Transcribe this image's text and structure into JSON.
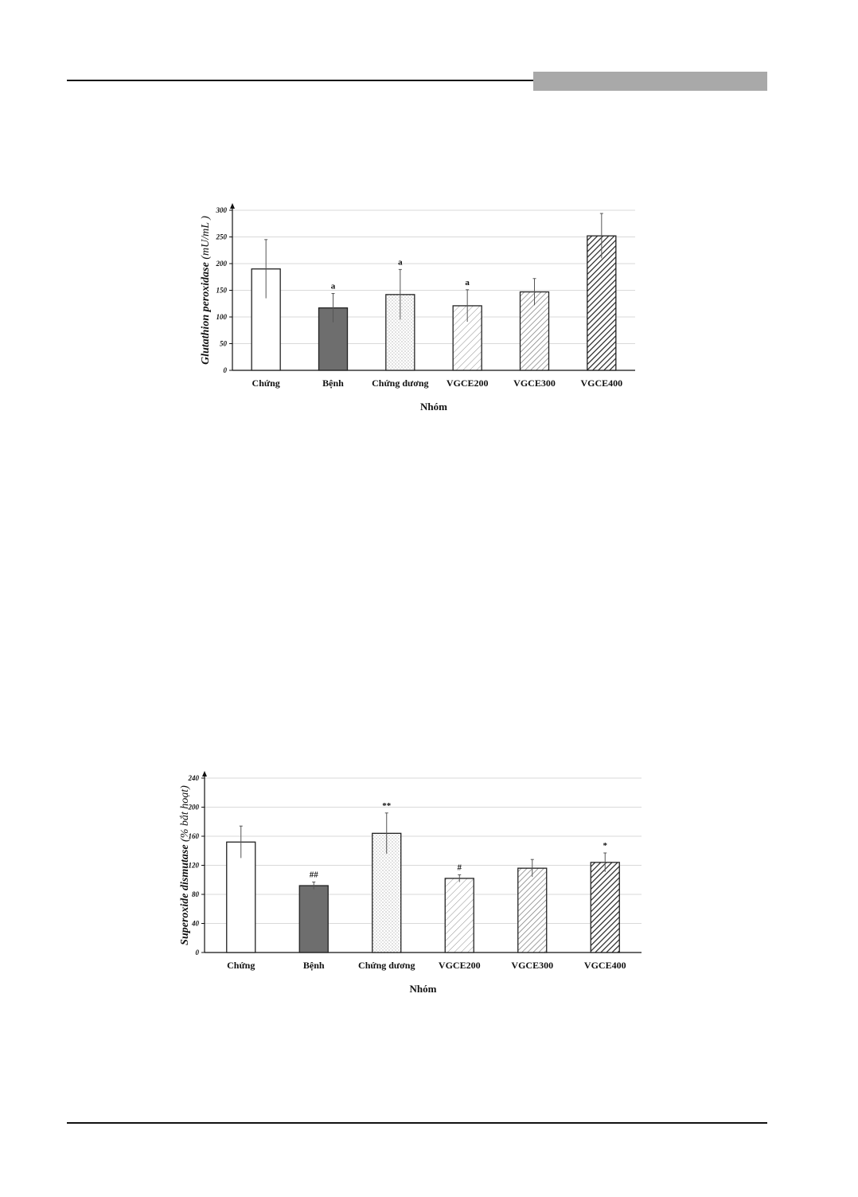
{
  "chart_data": [
    {
      "type": "bar",
      "categories": [
        "Chứng",
        "Bệnh",
        "Chứng dương",
        "VGCE200",
        "VGCE300",
        "VGCE400"
      ],
      "values": [
        190,
        117,
        142,
        121,
        147,
        252
      ],
      "errors": [
        55,
        27,
        47,
        30,
        25,
        42
      ],
      "annotations": [
        "",
        "a",
        "a",
        "a",
        "",
        ""
      ],
      "xlabel": "Nhóm",
      "ylabel_main": "Glutathion peroxidase",
      "ylabel_unit": "(mU/mL )",
      "ylim": [
        0,
        300
      ],
      "yticks": [
        "0",
        "50",
        "100",
        "150",
        "200",
        "250",
        "300"
      ],
      "grid": true,
      "fill_patterns": [
        "white",
        "solid-gray",
        "dots",
        "light-hatch",
        "medium-hatch",
        "dense-hatch"
      ]
    },
    {
      "type": "bar",
      "categories": [
        "Chứng",
        "Bệnh",
        "Chứng dương",
        "VGCE200",
        "VGCE300",
        "VGCE400"
      ],
      "values": [
        152,
        92,
        164,
        102,
        116,
        124
      ],
      "errors": [
        22,
        5,
        28,
        5,
        12,
        13
      ],
      "annotations": [
        "",
        "##",
        "**",
        "#",
        "",
        "*"
      ],
      "xlabel": "Nhóm",
      "ylabel_main": "Superoxide dismutase",
      "ylabel_unit": "(% bắt hoạt)",
      "ylim": [
        0,
        240
      ],
      "yticks": [
        "0",
        "40",
        "80",
        "120",
        "160",
        "200",
        "240"
      ],
      "grid": true,
      "fill_patterns": [
        "white",
        "solid-gray",
        "dots",
        "light-hatch",
        "medium-hatch",
        "dense-hatch"
      ]
    }
  ]
}
